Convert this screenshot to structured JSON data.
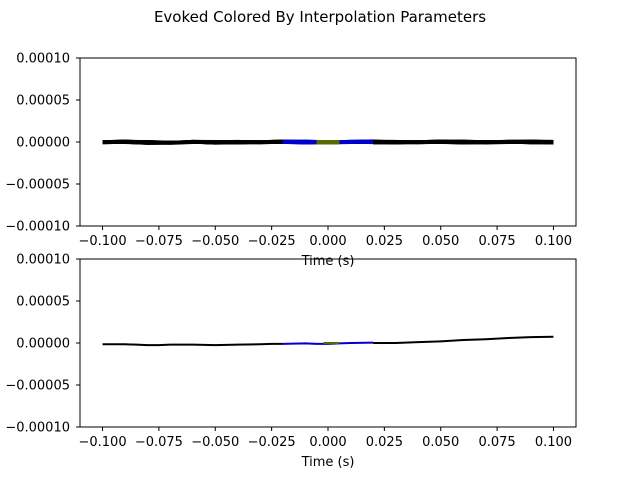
{
  "figure": {
    "title": "Evoked Colored By Interpolation Parameters"
  },
  "colors": {
    "segment_outer": "#000000",
    "segment_middle": "#0000cc",
    "segment_center": "#556b00"
  },
  "chart_data": [
    {
      "type": "line",
      "xlabel": "Time (s)",
      "ylabel": "",
      "xlim": [
        -0.11,
        0.11
      ],
      "ylim": [
        -0.0001,
        0.0001
      ],
      "xticks": [
        -0.1,
        -0.075,
        -0.05,
        -0.025,
        0.0,
        0.025,
        0.05,
        0.075,
        0.1
      ],
      "xtick_labels": [
        "−0.100",
        "−0.075",
        "−0.050",
        "−0.025",
        "0.000",
        "0.025",
        "0.050",
        "0.075",
        "0.100"
      ],
      "yticks": [
        0.0001,
        5e-05,
        0.0,
        -5e-05,
        -0.0001
      ],
      "ytick_labels": [
        "0.00010",
        "0.00005",
        "0.00000",
        "−0.00005",
        "−0.00010"
      ],
      "grid": false,
      "n_channels": 40,
      "spread": 1.5e-06,
      "series": [
        {
          "x": [
            -0.1,
            -0.09,
            -0.08,
            -0.07,
            -0.06,
            -0.05,
            -0.04,
            -0.03,
            -0.02
          ],
          "values": [
            0.0,
            0.0,
            -5e-07,
            -5e-07,
            0.0,
            -5e-07,
            0.0,
            0.0,
            0.0
          ],
          "color": "#000000"
        },
        {
          "x": [
            -0.02,
            -0.01,
            0.0,
            0.01,
            0.02
          ],
          "values": [
            0.0,
            0.0,
            0.0,
            0.0,
            2e-07
          ],
          "color": "#0000cc"
        },
        {
          "x": [
            -0.005,
            0.0,
            0.005
          ],
          "values": [
            0.0,
            0.0,
            0.0
          ],
          "color": "#556b00"
        },
        {
          "x": [
            0.02,
            0.03,
            0.04,
            0.05,
            0.06,
            0.07,
            0.08,
            0.09,
            0.1
          ],
          "values": [
            0.0,
            0.0,
            0.0,
            0.0,
            0.0,
            0.0,
            0.0,
            0.0,
            0.0
          ],
          "color": "#000000"
        }
      ]
    },
    {
      "type": "line",
      "xlabel": "Time (s)",
      "ylabel": "",
      "xlim": [
        -0.11,
        0.11
      ],
      "ylim": [
        -0.0001,
        0.0001
      ],
      "xticks": [
        -0.1,
        -0.075,
        -0.05,
        -0.025,
        0.0,
        0.025,
        0.05,
        0.075,
        0.1
      ],
      "xtick_labels": [
        "−0.100",
        "−0.075",
        "−0.050",
        "−0.025",
        "0.000",
        "0.025",
        "0.050",
        "0.075",
        "0.100"
      ],
      "yticks": [
        0.0001,
        5e-05,
        0.0,
        -5e-05,
        -0.0001
      ],
      "ytick_labels": [
        "0.00010",
        "0.00005",
        "0.00000",
        "−0.00005",
        "−0.00010"
      ],
      "grid": false,
      "n_channels": 1,
      "spread": 0,
      "series": [
        {
          "x": [
            -0.1,
            -0.09,
            -0.085,
            -0.08,
            -0.075,
            -0.07,
            -0.06,
            -0.05,
            -0.04,
            -0.03,
            -0.025,
            -0.02
          ],
          "values": [
            -1.5e-06,
            -1.5e-06,
            -2e-06,
            -2.5e-06,
            -2.5e-06,
            -2e-06,
            -2e-06,
            -2.5e-06,
            -2e-06,
            -1.5e-06,
            -1e-06,
            -1e-06
          ],
          "color": "#000000"
        },
        {
          "x": [
            -0.02,
            -0.01,
            -0.005,
            0.0,
            0.005,
            0.01,
            0.02
          ],
          "values": [
            -1e-06,
            -5e-07,
            -1e-06,
            -1e-06,
            -5e-07,
            0.0,
            5e-07
          ],
          "color": "#0000cc"
        },
        {
          "x": [
            -0.002,
            0.0,
            0.002,
            0.005
          ],
          "values": [
            0.0,
            0.0,
            0.0,
            0.0
          ],
          "color": "#556b00"
        },
        {
          "x": [
            0.02,
            0.03,
            0.04,
            0.05,
            0.06,
            0.07,
            0.08,
            0.09,
            0.1
          ],
          "values": [
            0.0,
            0.0,
            1e-06,
            2e-06,
            3.5e-06,
            4.5e-06,
            6e-06,
            7e-06,
            7.5e-06
          ],
          "color": "#000000"
        }
      ]
    }
  ]
}
